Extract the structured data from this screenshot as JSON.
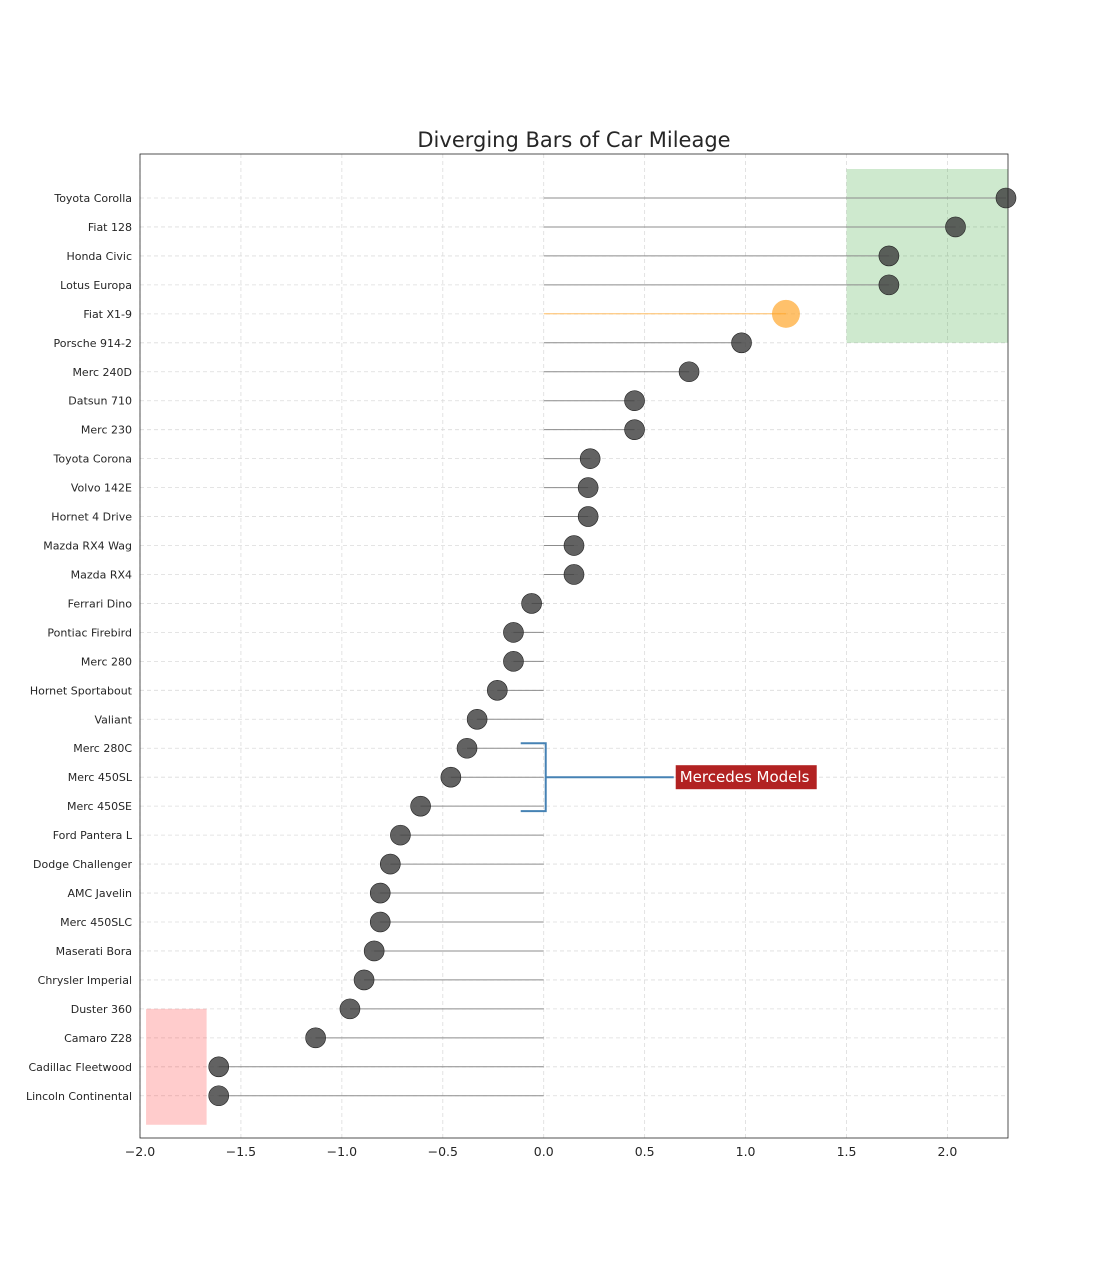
{
  "chart_data": {
    "type": "scatter",
    "title": "Diverging Bars of Car Mileage",
    "xlabel": "",
    "ylabel": "",
    "xlim": [
      -2.0,
      2.3
    ],
    "xticks": [
      -2.0,
      -1.5,
      -1.0,
      -0.5,
      0.0,
      0.5,
      1.0,
      1.5,
      2.0
    ],
    "xtick_labels": [
      "−2.0",
      "−1.5",
      "−1.0",
      "−0.5",
      "0.0",
      "0.5",
      "1.0",
      "1.5",
      "2.0"
    ],
    "grid": true,
    "points": [
      {
        "car": "Toyota Corolla",
        "value": 2.29
      },
      {
        "car": "Fiat 128",
        "value": 2.04
      },
      {
        "car": "Honda Civic",
        "value": 1.71
      },
      {
        "car": "Lotus Europa",
        "value": 1.71
      },
      {
        "car": "Fiat X1-9",
        "value": 1.2
      },
      {
        "car": "Porsche 914-2",
        "value": 0.98
      },
      {
        "car": "Merc 240D",
        "value": 0.72
      },
      {
        "car": "Datsun 710",
        "value": 0.45
      },
      {
        "car": "Merc 230",
        "value": 0.45
      },
      {
        "car": "Toyota Corona",
        "value": 0.23
      },
      {
        "car": "Volvo 142E",
        "value": 0.22
      },
      {
        "car": "Hornet 4 Drive",
        "value": 0.22
      },
      {
        "car": "Mazda RX4 Wag",
        "value": 0.15
      },
      {
        "car": "Mazda RX4",
        "value": 0.15
      },
      {
        "car": "Ferrari Dino",
        "value": -0.06
      },
      {
        "car": "Pontiac Firebird",
        "value": -0.15
      },
      {
        "car": "Merc 280",
        "value": -0.15
      },
      {
        "car": "Hornet Sportabout",
        "value": -0.23
      },
      {
        "car": "Valiant",
        "value": -0.33
      },
      {
        "car": "Merc 280C",
        "value": -0.38
      },
      {
        "car": "Merc 450SL",
        "value": -0.46
      },
      {
        "car": "Merc 450SE",
        "value": -0.61
      },
      {
        "car": "Ford Pantera L",
        "value": -0.71
      },
      {
        "car": "Dodge Challenger",
        "value": -0.76
      },
      {
        "car": "AMC Javelin",
        "value": -0.81
      },
      {
        "car": "Merc 450SLC",
        "value": -0.81
      },
      {
        "car": "Maserati Bora",
        "value": -0.84
      },
      {
        "car": "Chrysler Imperial",
        "value": -0.89
      },
      {
        "car": "Duster 360",
        "value": -0.96
      },
      {
        "car": "Camaro Z28",
        "value": -1.13
      },
      {
        "car": "Cadillac Fleetwood",
        "value": -1.61
      },
      {
        "car": "Lincoln Continental",
        "value": -1.61
      }
    ],
    "highlight": {
      "car": "Fiat X1-9",
      "color": "#ff9f1c"
    },
    "annotation": {
      "text": "Mercedes Models",
      "cars": [
        "Merc 280C",
        "Merc 450SL",
        "Merc 450SE"
      ],
      "box_color": "#b22222",
      "bracket_color": "#4682b4"
    },
    "regions": [
      {
        "x0": 1.5,
        "x1": 2.3,
        "from_car": "Toyota Corolla",
        "to_car": "Fiat X1-9",
        "color": "#2ca02c",
        "alpha": 0.23
      },
      {
        "x0": -1.97,
        "x1": -1.67,
        "from_car": "Camaro Z28",
        "to_car": "Lincoln Continental",
        "color": "#ff0000",
        "alpha": 0.2
      }
    ],
    "dot_color": "#404040",
    "line_color": "#8c8c8c"
  }
}
